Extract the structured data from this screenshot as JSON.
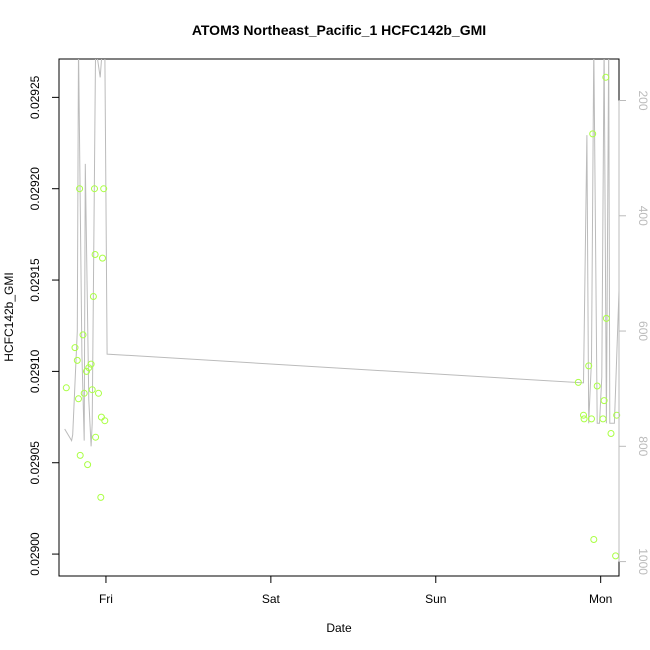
{
  "chart_data": {
    "type": "scatter",
    "title": "ATOM3 Northeast_Pacific_1 HCFC142b_GMI",
    "xlabel": "Date",
    "ylabel": "HCFC142b_GMI",
    "x_ticks": [
      "Fri",
      "Sat",
      "Sun",
      "Mon"
    ],
    "xlim": [
      "Thu 17:10",
      "Mon 02:40"
    ],
    "ylim": [
      0.028988,
      0.029271
    ],
    "y_ticks": [
      "0.02900",
      "0.02905",
      "0.02910",
      "0.02915",
      "0.02920",
      "0.02925"
    ],
    "y_right_ticks": [
      "200",
      "400",
      "600",
      "800",
      "1000"
    ],
    "y_right_lim": [
      1025,
      128
    ],
    "y_right_reversed": true,
    "grid": false,
    "colors": {
      "points": "#aaff44",
      "line": "#bbbbbb",
      "axis": "#000000",
      "right_axis": "#bbbbbb"
    },
    "series": [
      {
        "type": "points",
        "values": [
          [
            "Thu 18:14",
            0.029091
          ],
          [
            "Thu 19:30",
            0.029113
          ],
          [
            "Thu 19:50",
            0.029106
          ],
          [
            "Thu 20:00",
            0.029085
          ],
          [
            "Thu 20:10",
            0.0292
          ],
          [
            "Thu 20:15",
            0.029054
          ],
          [
            "Thu 20:40",
            0.02912
          ],
          [
            "Thu 20:50",
            0.029088
          ],
          [
            "Thu 21:10",
            0.0291
          ],
          [
            "Thu 21:20",
            0.029049
          ],
          [
            "Thu 21:30",
            0.029102
          ],
          [
            "Thu 21:50",
            0.029104
          ],
          [
            "Thu 22:00",
            0.02909
          ],
          [
            "Thu 22:10",
            0.029141
          ],
          [
            "Thu 22:20",
            0.0292
          ],
          [
            "Thu 22:25",
            0.029164
          ],
          [
            "Thu 22:30",
            0.029064
          ],
          [
            "Thu 22:55",
            0.029088
          ],
          [
            "Thu 23:15",
            0.029031
          ],
          [
            "Thu 23:20",
            0.029075
          ],
          [
            "Thu 23:30",
            0.029162
          ],
          [
            "Thu 23:40",
            0.0292
          ],
          [
            "Thu 23:50",
            0.029073
          ],
          [
            "Sun 20:45",
            0.029094
          ],
          [
            "Sun 21:30",
            0.029076
          ],
          [
            "Sun 21:35",
            0.029074
          ],
          [
            "Sun 22:15",
            0.029103
          ],
          [
            "Sun 22:40",
            0.029074
          ],
          [
            "Sun 22:50",
            0.02923
          ],
          [
            "Sun 23:00",
            0.029008
          ],
          [
            "Sun 23:30",
            0.029092
          ],
          [
            "Mon 00:20",
            0.029074
          ],
          [
            "Mon 00:30",
            0.029084
          ],
          [
            "Mon 00:45",
            0.029261
          ],
          [
            "Mon 00:50",
            0.029129
          ],
          [
            "Mon 01:30",
            0.029066
          ],
          [
            "Mon 02:10",
            0.028999
          ],
          [
            "Mon 02:20",
            0.029076
          ]
        ]
      },
      {
        "type": "line",
        "axis": "right",
        "values": [
          [
            "Thu 18:00",
            770
          ],
          [
            "Thu 19:00",
            790
          ],
          [
            "Thu 19:10",
            780
          ],
          [
            "Thu 19:50",
            600
          ],
          [
            "Thu 20:00",
            105
          ],
          [
            "Thu 20:30",
            640
          ],
          [
            "Thu 20:50",
            790
          ],
          [
            "Thu 21:00",
            310
          ],
          [
            "Thu 21:30",
            720
          ],
          [
            "Thu 21:50",
            800
          ],
          [
            "Thu 22:00",
            760
          ],
          [
            "Thu 22:30",
            105
          ],
          [
            "Thu 23:10",
            160
          ],
          [
            "Thu 23:30",
            105
          ],
          [
            "Thu 23:50",
            105
          ],
          [
            "Fri 00:10",
            640
          ],
          [
            "Sun 21:30",
            690
          ],
          [
            "Sun 22:00",
            260
          ],
          [
            "Sun 22:15",
            760
          ],
          [
            "Sun 22:40",
            650
          ],
          [
            "Sun 23:00",
            105
          ],
          [
            "Sun 23:30",
            760
          ],
          [
            "Sun 23:50",
            760
          ],
          [
            "Mon 00:10",
            680
          ],
          [
            "Mon 00:30",
            105
          ],
          [
            "Mon 00:50",
            760
          ],
          [
            "Mon 01:10",
            105
          ],
          [
            "Mon 01:20",
            760
          ],
          [
            "Mon 02:00",
            760
          ],
          [
            "Mon 02:40",
            530
          ]
        ]
      }
    ]
  }
}
